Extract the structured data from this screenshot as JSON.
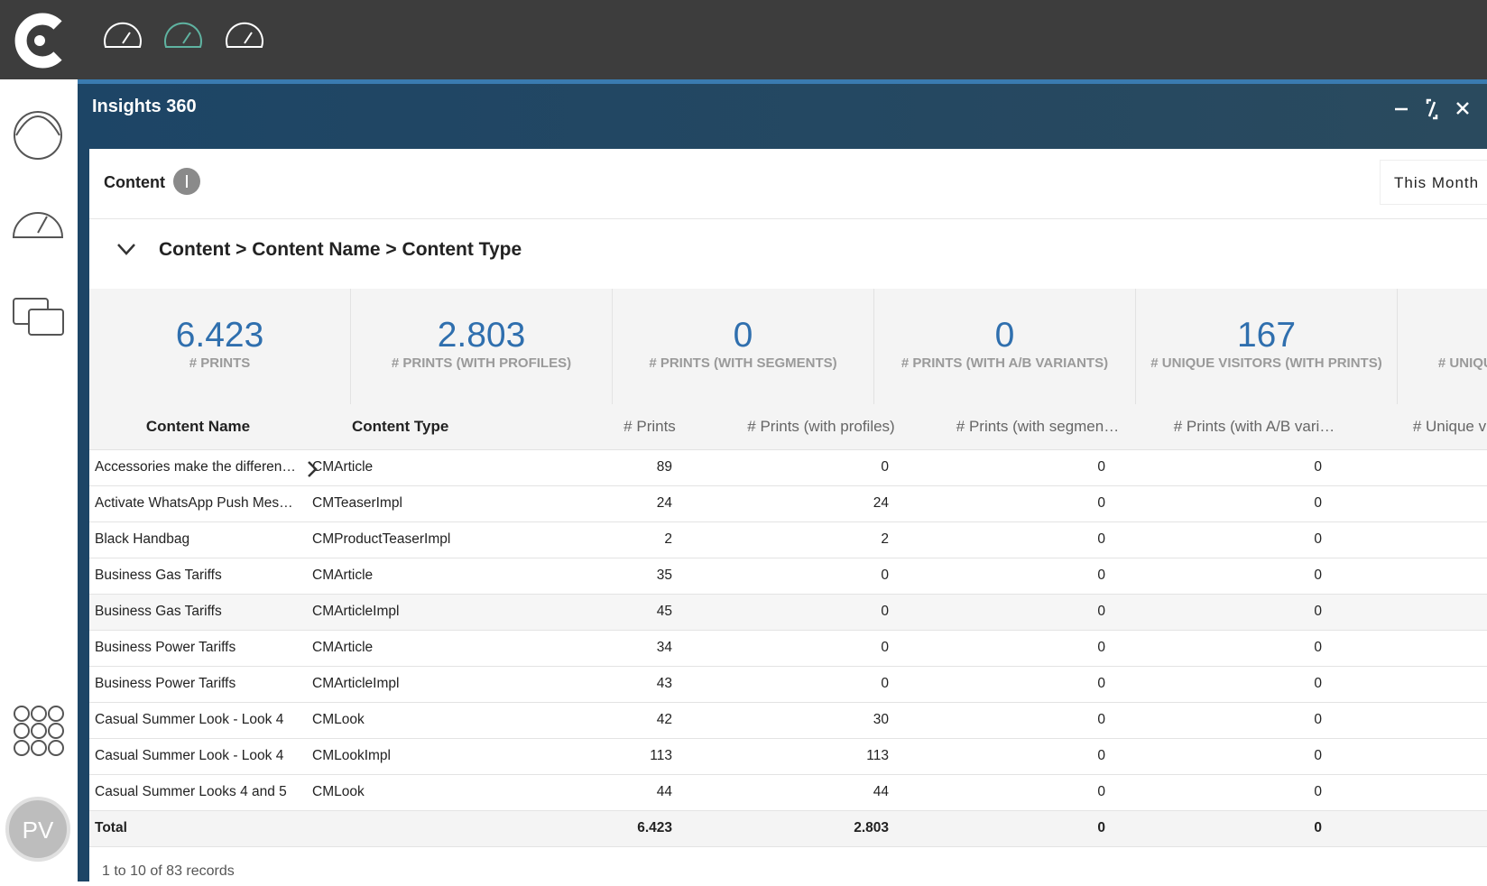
{
  "app": {
    "avatar": "PV"
  },
  "panel": {
    "title": "Insights 360"
  },
  "section": {
    "title": "Content",
    "period": "This Month"
  },
  "breadcrumb": "Content > Content Name > Content Type",
  "kpis": [
    {
      "value": "6.423",
      "label": "# PRINTS"
    },
    {
      "value": "2.803",
      "label": "# PRINTS (WITH PROFILES)"
    },
    {
      "value": "0",
      "label": "# PRINTS (WITH SEGMENTS)"
    },
    {
      "value": "0",
      "label": "# PRINTS (WITH A/B VARIANTS)"
    },
    {
      "value": "167",
      "label": "# UNIQUE VISITORS (WITH PRINTS)"
    },
    {
      "value": "",
      "label": "# UNIQUE SESSIONS (WITH PRINTS)"
    }
  ],
  "table": {
    "columns": [
      "Content Name",
      "Content Type",
      "# Prints",
      "# Prints (with profiles)",
      "# Prints (with segmen…",
      "# Prints (with A/B vari…",
      "# Unique visi"
    ],
    "rows": [
      [
        "Accessories make the differen…",
        "CMArticle",
        "89",
        "0",
        "0",
        "0"
      ],
      [
        "Activate WhatsApp Push Mes…",
        "CMTeaserImpl",
        "24",
        "24",
        "0",
        "0"
      ],
      [
        "Black Handbag",
        "CMProductTeaserImpl",
        "2",
        "2",
        "0",
        "0"
      ],
      [
        "Business Gas Tariffs",
        "CMArticle",
        "35",
        "0",
        "0",
        "0"
      ],
      [
        "Business Gas Tariffs",
        "CMArticleImpl",
        "45",
        "0",
        "0",
        "0"
      ],
      [
        "Business Power Tariffs",
        "CMArticle",
        "34",
        "0",
        "0",
        "0"
      ],
      [
        "Business Power Tariffs",
        "CMArticleImpl",
        "43",
        "0",
        "0",
        "0"
      ],
      [
        "Casual Summer Look - Look 4",
        "CMLook",
        "42",
        "30",
        "0",
        "0"
      ],
      [
        "Casual Summer Look - Look 4",
        "CMLookImpl",
        "113",
        "113",
        "0",
        "0"
      ],
      [
        "Casual Summer Looks 4 and 5",
        "CMLook",
        "44",
        "44",
        "0",
        "0"
      ]
    ],
    "total": [
      "Total",
      "",
      "6.423",
      "2.803",
      "0",
      "0"
    ]
  },
  "footer": "1 to 10 of 83 records"
}
